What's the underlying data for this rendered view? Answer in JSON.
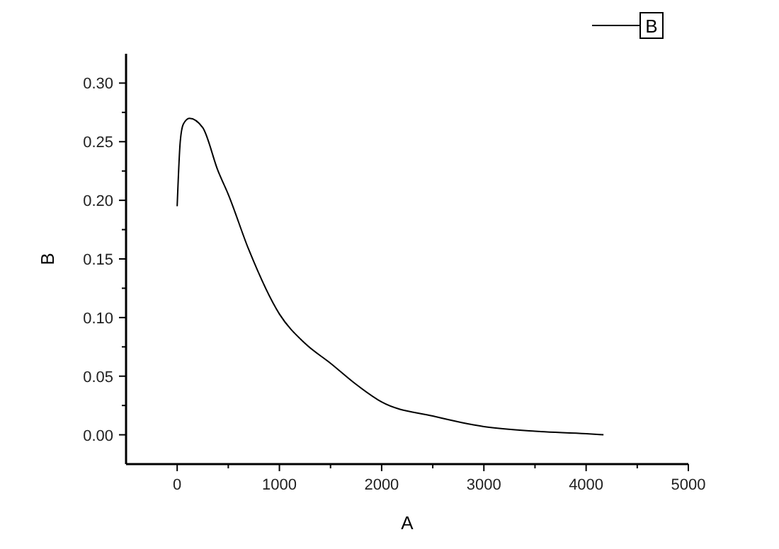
{
  "chart_data": {
    "type": "line",
    "xlabel": "A",
    "ylabel": "B",
    "legend": "top right",
    "grid": false,
    "marker": "none",
    "line_style": "solid",
    "xlim": [
      -500,
      5000
    ],
    "ylim": [
      -0.025,
      0.325
    ],
    "xticks": [
      0,
      {
        "value": 500,
        "label": null
      },
      1000,
      {
        "value": 1500,
        "label": null
      },
      2000,
      {
        "value": 2500,
        "label": null
      },
      3000,
      {
        "value": 3500,
        "label": null
      },
      4000,
      {
        "value": 4500,
        "label": null
      },
      5000
    ],
    "yticks": [
      {
        "value": 0,
        "label": "0.00"
      },
      {
        "value": 0.025,
        "label": null
      },
      {
        "value": 0.05,
        "label": "0.05"
      },
      {
        "value": 0.075,
        "label": null
      },
      {
        "value": 0.1,
        "label": "0.10"
      },
      {
        "value": 0.125,
        "label": null
      },
      {
        "value": 0.15,
        "label": "0.15"
      },
      {
        "value": 0.175,
        "label": null
      },
      {
        "value": 0.2,
        "label": "0.20"
      },
      {
        "value": 0.225,
        "label": null
      },
      {
        "value": 0.25,
        "label": "0.25"
      },
      {
        "value": 0.275,
        "label": null
      },
      {
        "value": 0.3,
        "label": "0.30"
      }
    ],
    "x": [
      0,
      30,
      60,
      120,
      250,
      400,
      500,
      700,
      1000,
      1250,
      1500,
      1750,
      2000,
      2500,
      3000,
      3500,
      4000,
      4170
    ],
    "series": [
      {
        "name": "B",
        "color": "#000000",
        "values": [
          0.195,
          0.25,
          0.265,
          0.27,
          0.262,
          0.225,
          0.205,
          0.158,
          0.103,
          0.078,
          0.061,
          0.043,
          0.028,
          0.016,
          0.007,
          0.003,
          0.001,
          0
        ]
      }
    ]
  }
}
